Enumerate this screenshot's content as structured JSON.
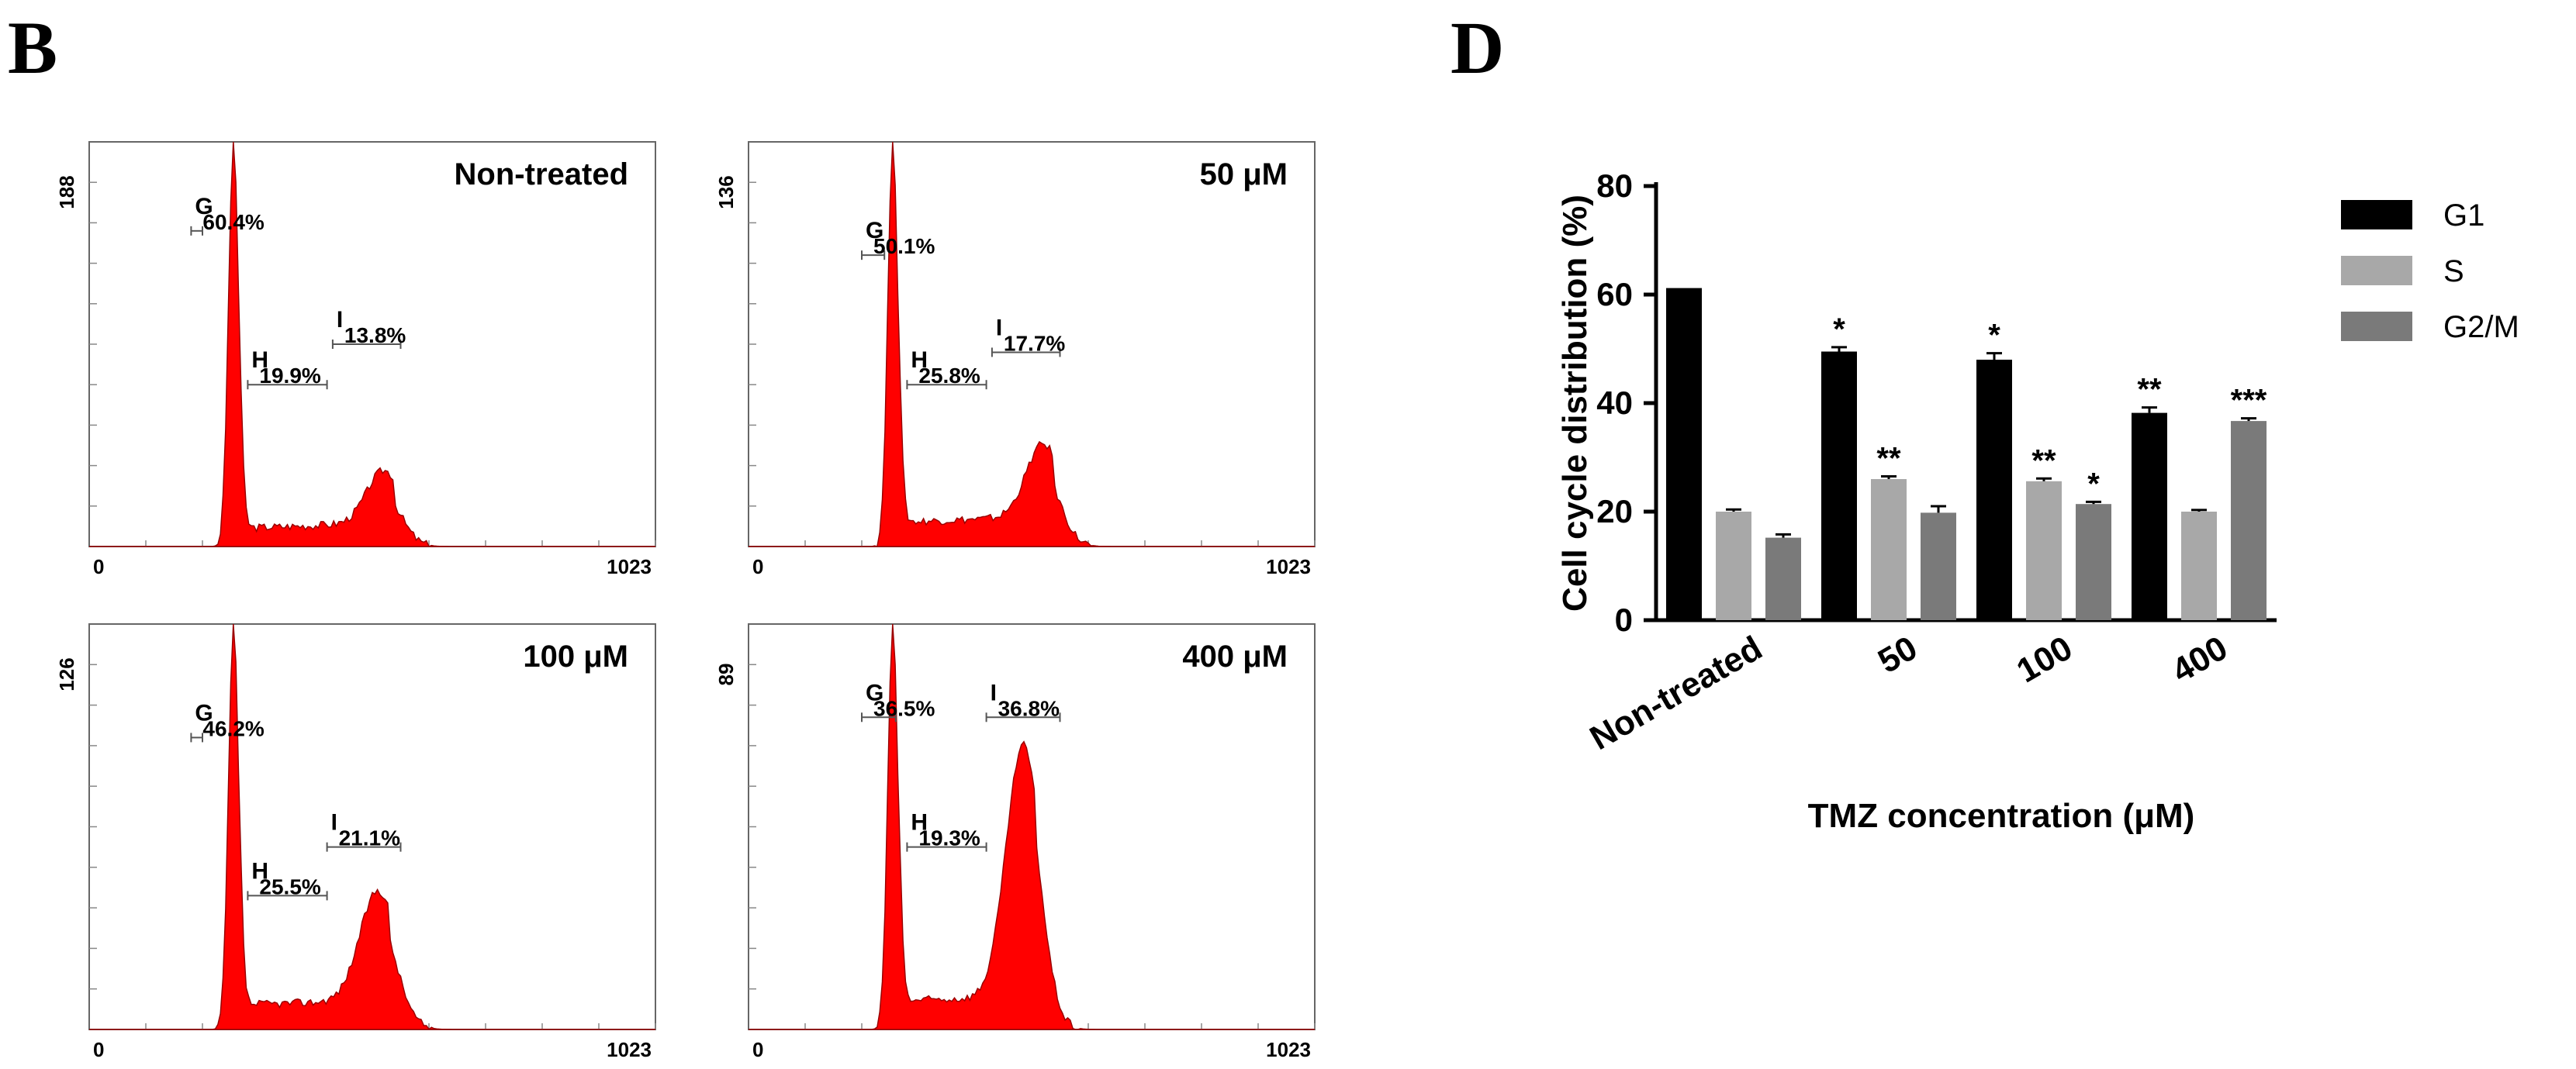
{
  "panels": {
    "left_letter": "B",
    "right_letter": "D"
  },
  "colors": {
    "histogram_fill": "#ff0000",
    "g1": "#000000",
    "s": "#a8a8a8",
    "g2m": "#7a7a7a"
  },
  "chart_data": [
    {
      "type": "area",
      "label": "Non-treated",
      "y_max_label": "188",
      "x_min_label": "0",
      "x_max_label": "1023",
      "gates": [
        {
          "name": "G",
          "value": "60.4%"
        },
        {
          "name": "H",
          "value": "19.9%"
        },
        {
          "name": "I",
          "value": "13.8%"
        }
      ]
    },
    {
      "type": "area",
      "label": "50 μM",
      "y_max_label": "136",
      "x_min_label": "0",
      "x_max_label": "1023",
      "gates": [
        {
          "name": "G",
          "value": "50.1%"
        },
        {
          "name": "H",
          "value": "25.8%"
        },
        {
          "name": "I",
          "value": "17.7%"
        }
      ]
    },
    {
      "type": "area",
      "label": "100 μM",
      "y_max_label": "126",
      "x_min_label": "0",
      "x_max_label": "1023",
      "gates": [
        {
          "name": "G",
          "value": "46.2%"
        },
        {
          "name": "H",
          "value": "25.5%"
        },
        {
          "name": "I",
          "value": "21.1%"
        }
      ]
    },
    {
      "type": "area",
      "label": "400 μM",
      "y_max_label": "89",
      "x_min_label": "0",
      "x_max_label": "1023",
      "gates": [
        {
          "name": "G",
          "value": "36.5%"
        },
        {
          "name": "H",
          "value": "19.3%"
        },
        {
          "name": "I",
          "value": "36.8%"
        }
      ]
    },
    {
      "type": "bar",
      "title": "",
      "xlabel": "TMZ concentration (μM)",
      "ylabel": "Cell cycle distribution (%)",
      "ylim": [
        0,
        80
      ],
      "yticks": [
        "0",
        "20",
        "40",
        "60",
        "80"
      ],
      "categories": [
        "Non-treated",
        "50",
        "100",
        "400"
      ],
      "series": [
        {
          "name": "G1",
          "values": [
            61.2,
            49.5,
            48.0,
            38.2
          ],
          "errors": [
            0,
            0.8,
            1.2,
            1.0
          ],
          "significance": [
            "",
            "*",
            "*",
            "**"
          ]
        },
        {
          "name": "S",
          "values": [
            20.0,
            26.0,
            25.6,
            20.0
          ],
          "errors": [
            0.4,
            0.5,
            0.5,
            0.3
          ],
          "significance": [
            "",
            "**",
            "**",
            ""
          ]
        },
        {
          "name": "G2/M",
          "values": [
            15.2,
            19.8,
            21.4,
            36.7
          ],
          "errors": [
            0.6,
            1.2,
            0.4,
            0.5
          ],
          "significance": [
            "",
            "",
            "*",
            "***"
          ]
        }
      ],
      "legend": "right"
    }
  ]
}
